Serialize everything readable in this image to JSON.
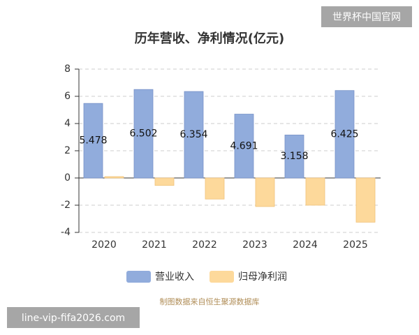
{
  "chart_data": {
    "type": "bar",
    "title": "历年营收、净利情况(亿元)",
    "categories": [
      "2020",
      "2021",
      "2022",
      "2023",
      "2024",
      "2025"
    ],
    "series": [
      {
        "name": "营业收入",
        "color": "#91acdc",
        "values": [
          5.478,
          6.502,
          6.354,
          4.691,
          3.158,
          6.425
        ],
        "show_labels": true
      },
      {
        "name": "归母净利润",
        "color": "#fdd99b",
        "values": [
          0.1,
          -0.55,
          -1.55,
          -2.1,
          -2.0,
          -3.25
        ],
        "show_labels": false
      }
    ],
    "ylim": [
      -4,
      8
    ],
    "yticks": [
      -4,
      -2,
      0,
      2,
      4,
      6,
      8
    ],
    "grid": true,
    "legend": "bottom",
    "source": "制图数据来自恒生聚源数据库",
    "watermarks": [
      "世界杯中国官网",
      "line-vip-fifa2026.com"
    ]
  }
}
